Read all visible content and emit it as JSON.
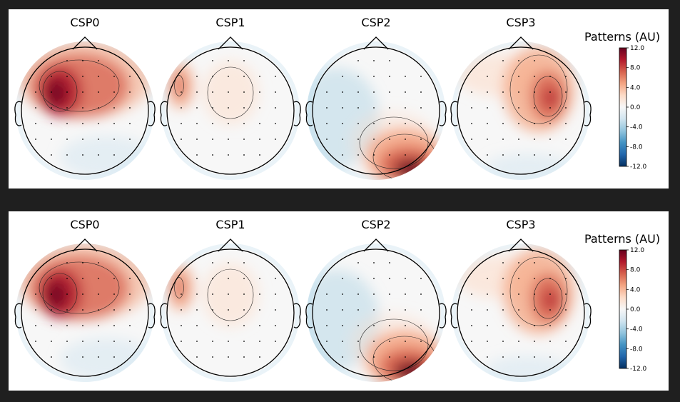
{
  "figures": [
    {
      "maps": [
        {
          "title": "CSP0"
        },
        {
          "title": "CSP1"
        },
        {
          "title": "CSP2"
        },
        {
          "title": "CSP3"
        }
      ],
      "colorbar": {
        "title": "Patterns (AU)",
        "ticks": [
          "12.0",
          "8.0",
          "4.0",
          "0.0",
          "-4.0",
          "-8.0",
          "-12.0"
        ]
      }
    },
    {
      "maps": [
        {
          "title": "CSP0"
        },
        {
          "title": "CSP1"
        },
        {
          "title": "CSP2"
        },
        {
          "title": "CSP3"
        }
      ],
      "colorbar": {
        "title": "Patterns (AU)",
        "ticks": [
          "12.0",
          "8.0",
          "4.0",
          "0.0",
          "-4.0",
          "-8.0",
          "-12.0"
        ]
      }
    }
  ],
  "colormap": {
    "name": "RdBu_r",
    "colors": [
      "#053061",
      "#2166ac",
      "#4393c3",
      "#92c5de",
      "#d1e5f0",
      "#f7f7f7",
      "#fddbc7",
      "#f4a582",
      "#d6604d",
      "#b2182b",
      "#67001f"
    ]
  }
}
